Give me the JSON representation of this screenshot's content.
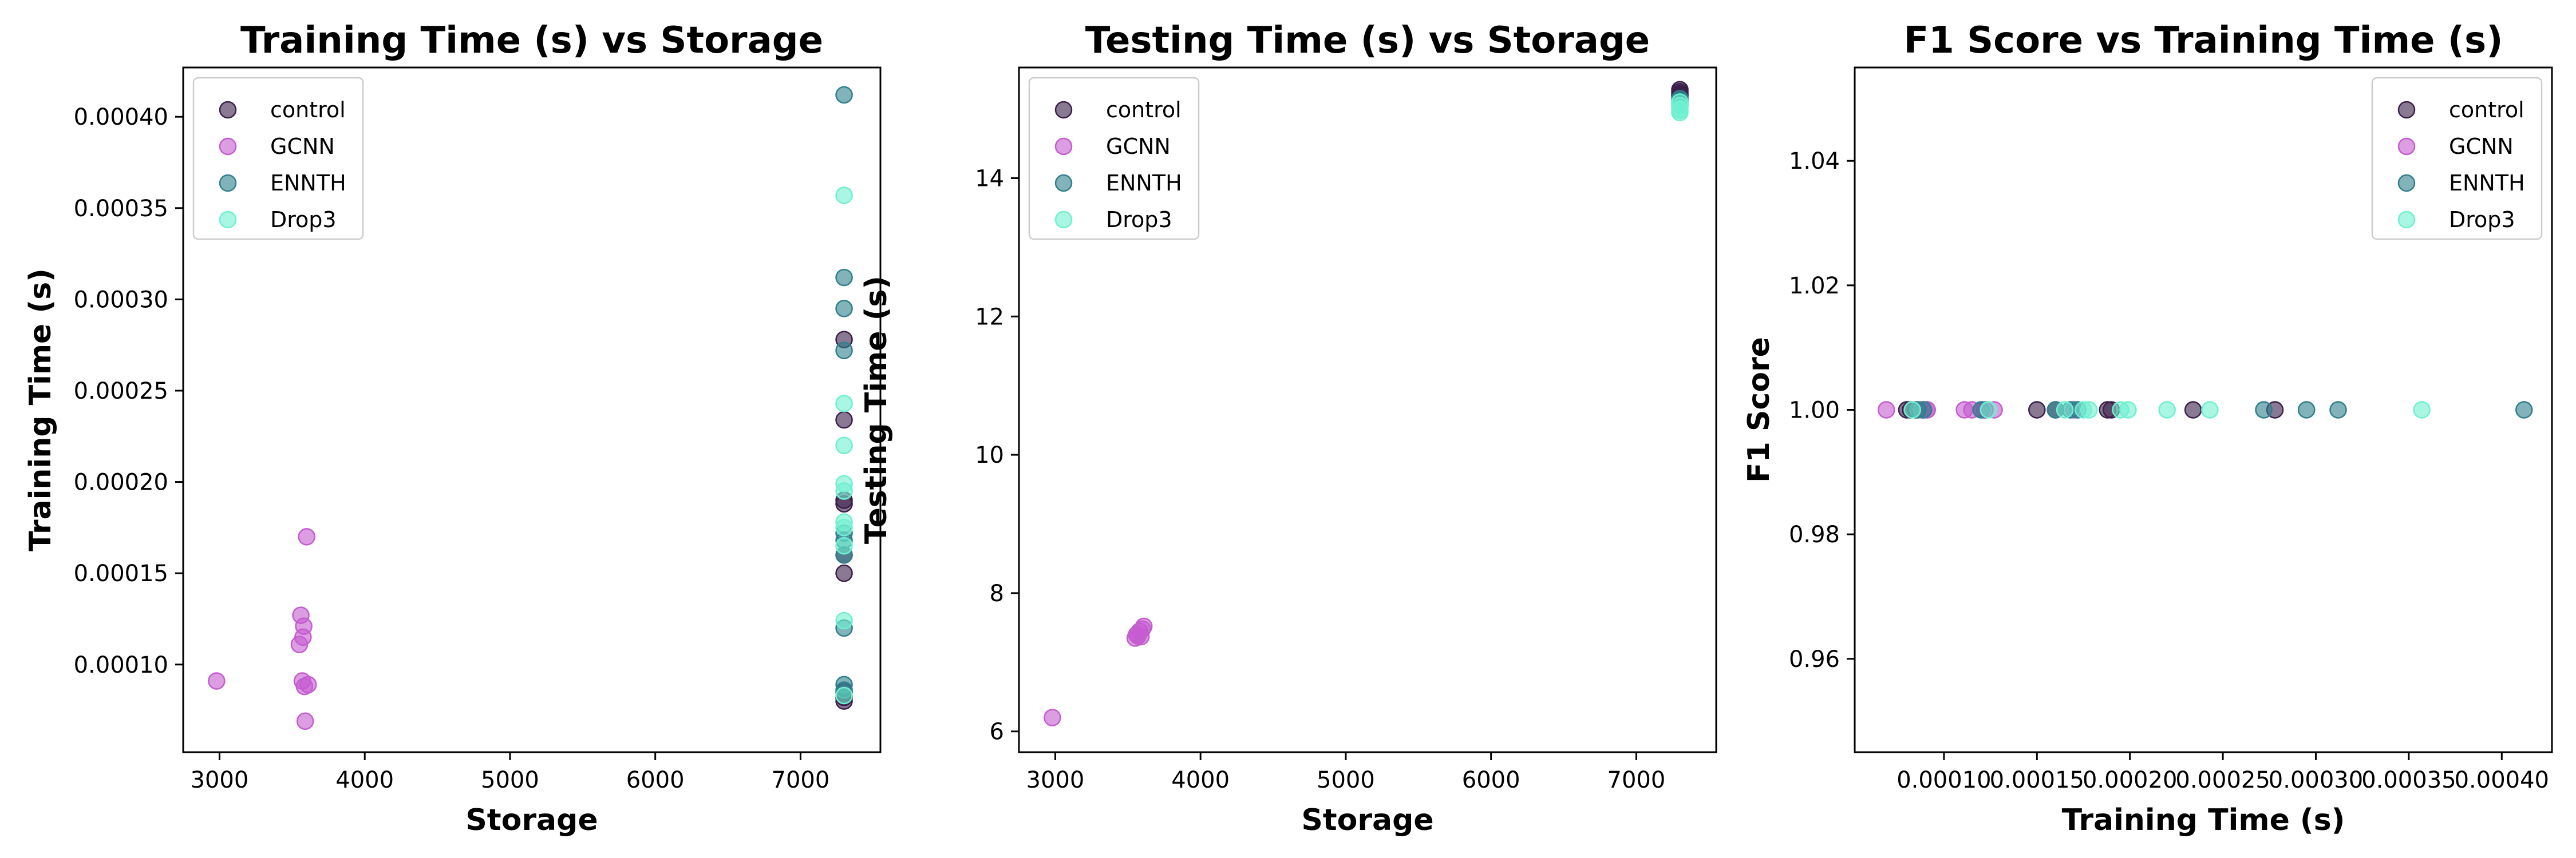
{
  "colors": {
    "control": "#3b1f4a",
    "GCNN": "#c55cd0",
    "ENNTH": "#2f7f8c",
    "Drop3": "#6ff0d0"
  },
  "chart_data": [
    {
      "type": "scatter",
      "title": "Training Time (s) vs Storage",
      "xlabel": "Storage",
      "ylabel": "Training Time (s)",
      "xlim": [
        2750,
        7550
      ],
      "ylim": [
        5.2e-05,
        0.000427
      ],
      "xticks": [
        3000,
        4000,
        5000,
        6000,
        7000
      ],
      "xtick_labels": [
        "3000",
        "4000",
        "5000",
        "6000",
        "7000"
      ],
      "yticks": [
        0.0001,
        0.00015,
        0.0002,
        0.00025,
        0.0003,
        0.00035,
        0.0004
      ],
      "ytick_labels": [
        "0.00010",
        "0.00015",
        "0.00020",
        "0.00025",
        "0.00030",
        "0.00035",
        "0.00040"
      ],
      "legend_position": "top-left",
      "series": [
        {
          "name": "control",
          "x": [
            7300,
            7300,
            7300,
            7300,
            7300,
            7300,
            7300,
            7300,
            7300,
            7300
          ],
          "y": [
            8e-05,
            8.2e-05,
            0.00015,
            0.00016,
            0.000188,
            0.00019,
            0.000234,
            0.000278,
            8.2e-05,
            8.5e-05
          ]
        },
        {
          "name": "GCNN",
          "x": [
            2980,
            3550,
            3560,
            3570,
            3575,
            3580,
            3585,
            3590,
            3600,
            3610
          ],
          "y": [
            9.1e-05,
            0.000111,
            0.000127,
            9.1e-05,
            0.000115,
            0.000121,
            8.8e-05,
            6.9e-05,
            0.00017,
            8.9e-05
          ]
        },
        {
          "name": "ENNTH",
          "x": [
            7300,
            7300,
            7300,
            7300,
            7300,
            7300,
            7300,
            7300,
            7300,
            7300
          ],
          "y": [
            0.000412,
            0.000312,
            0.000295,
            0.000272,
            0.000172,
            0.000168,
            0.00012,
            8.9e-05,
            8.6e-05,
            0.00016
          ]
        },
        {
          "name": "Drop3",
          "x": [
            7300,
            7300,
            7300,
            7300,
            7300,
            7300,
            7300,
            7300,
            7300,
            7300
          ],
          "y": [
            0.000357,
            0.000243,
            0.00022,
            0.000199,
            0.000195,
            0.000178,
            0.000175,
            0.000165,
            0.000124,
            8.3e-05
          ]
        }
      ]
    },
    {
      "type": "scatter",
      "title": "Testing Time (s) vs Storage",
      "xlabel": "Storage",
      "ylabel": "Testing Time (s)",
      "xlim": [
        2750,
        7550
      ],
      "ylim": [
        5.7,
        15.6
      ],
      "xticks": [
        3000,
        4000,
        5000,
        6000,
        7000
      ],
      "xtick_labels": [
        "3000",
        "4000",
        "5000",
        "6000",
        "7000"
      ],
      "yticks": [
        6,
        8,
        10,
        12,
        14
      ],
      "ytick_labels": [
        "6",
        "8",
        "10",
        "12",
        "14"
      ],
      "legend_position": "top-left",
      "series": [
        {
          "name": "control",
          "x": [
            7300,
            7300,
            7300,
            7300,
            7300
          ],
          "y": [
            15.28,
            15.25,
            15.22,
            15.2,
            15.18
          ]
        },
        {
          "name": "GCNN",
          "x": [
            2980,
            3550,
            3560,
            3570,
            3580,
            3590,
            3600,
            3610
          ],
          "y": [
            6.2,
            7.35,
            7.4,
            7.38,
            7.45,
            7.37,
            7.48,
            7.52
          ]
        },
        {
          "name": "ENNTH",
          "x": [
            7300,
            7300,
            7300,
            7300,
            7300
          ],
          "y": [
            15.15,
            15.1,
            15.05,
            15.12,
            15.08
          ]
        },
        {
          "name": "Drop3",
          "x": [
            7300,
            7300,
            7300,
            7300,
            7300
          ],
          "y": [
            15.0,
            14.95,
            15.05,
            15.1,
            14.98
          ]
        }
      ]
    },
    {
      "type": "scatter",
      "title": "F1 Score vs Training Time (s)",
      "xlabel": "Training Time (s)",
      "ylabel": "F1 Score",
      "xlim": [
        5.2e-05,
        0.000427
      ],
      "ylim": [
        0.945,
        1.055
      ],
      "xticks": [
        0.0001,
        0.00015,
        0.0002,
        0.00025,
        0.0003,
        0.00035,
        0.0004
      ],
      "xtick_labels": [
        "0.00010",
        "0.00015",
        "0.00020",
        "0.00025",
        "0.00030",
        "0.00035",
        "0.00040"
      ],
      "yticks": [
        0.96,
        0.98,
        1.0,
        1.02,
        1.04
      ],
      "ytick_labels": [
        "0.96",
        "0.98",
        "1.00",
        "1.02",
        "1.04"
      ],
      "legend_position": "top-right",
      "series": [
        {
          "name": "control",
          "x": [
            8e-05,
            8.2e-05,
            0.00015,
            0.00016,
            0.000188,
            0.00019,
            0.000234,
            0.000278,
            8.5e-05,
            0.000122
          ],
          "y": [
            1,
            1,
            1,
            1,
            1,
            1,
            1,
            1,
            1,
            1
          ]
        },
        {
          "name": "GCNN",
          "x": [
            6.9e-05,
            8.8e-05,
            8.9e-05,
            9.1e-05,
            9.1e-05,
            0.000111,
            0.000115,
            0.000121,
            0.000127,
            0.00017
          ],
          "y": [
            1,
            1,
            1,
            1,
            1,
            1,
            1,
            1,
            1,
            1
          ]
        },
        {
          "name": "ENNTH",
          "x": [
            8.6e-05,
            8.9e-05,
            0.00012,
            0.00016,
            0.000168,
            0.000172,
            0.000272,
            0.000295,
            0.000312,
            0.000412
          ],
          "y": [
            1,
            1,
            1,
            1,
            1,
            1,
            1,
            1,
            1,
            1
          ]
        },
        {
          "name": "Drop3",
          "x": [
            8.3e-05,
            0.000124,
            0.000165,
            0.000175,
            0.000178,
            0.000195,
            0.000199,
            0.00022,
            0.000243,
            0.000357
          ],
          "y": [
            1,
            1,
            1,
            1,
            1,
            1,
            1,
            1,
            1,
            1
          ]
        }
      ]
    }
  ]
}
